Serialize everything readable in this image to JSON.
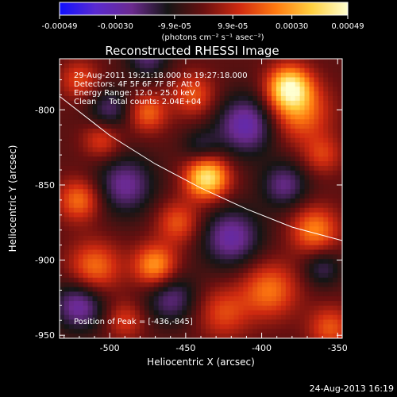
{
  "colorbar": {
    "tick_labels": [
      "-0.00049",
      "-0.00030",
      "-9.9e-05",
      "9.9e-05",
      "0.00030",
      "0.00049"
    ],
    "tick_values": [
      -0.00049,
      -0.0003,
      -9.9e-05,
      9.9e-05,
      0.0003,
      0.00049
    ],
    "range": [
      -0.00049,
      0.00049
    ],
    "unit_label": "(photons cm⁻² s⁻¹ asec⁻²)",
    "colors": [
      "#1010ff",
      "#5a2ad0",
      "#6b2a8f",
      "#151515",
      "#6a1010",
      "#d02a10",
      "#ff7a10",
      "#ffd040",
      "#ffffd0"
    ]
  },
  "image": {
    "title": "Reconstructed RHESSI Image",
    "info_lines": [
      "29-Aug-2011 19:21:18.000 to 19:27:18.000",
      "Detectors: 4F 5F 6F 7F 8F, Att 0",
      "Energy Range: 12.0 - 25.0 keV",
      "Clean     Total counts: 2.04E+04"
    ],
    "peak_label": "Position of Peak = [-436,-845]"
  },
  "chart_data": {
    "type": "heatmap",
    "title": "Reconstructed RHESSI Image",
    "xlabel": "Heliocentric X (arcsec)",
    "ylabel": "Heliocentric Y (arcsec)",
    "xlim": [
      -533,
      -347
    ],
    "ylim": [
      -952,
      -766
    ],
    "xticks": [
      -500,
      -450,
      -400,
      -350
    ],
    "yticks": [
      -800,
      -850,
      -900,
      -950
    ],
    "peak": {
      "x": -436,
      "y": -845
    },
    "limb_curve": {
      "x": [
        -533,
        -500,
        -470,
        -440,
        -410,
        -380,
        -347
      ],
      "y": [
        -791,
        -817,
        -836,
        -852,
        -866,
        -878,
        -887
      ]
    },
    "blobs": [
      {
        "x": -436,
        "y": -845,
        "amp": 1.0,
        "r": 10
      },
      {
        "x": -382,
        "y": -785,
        "amp": 0.95,
        "r": 10
      },
      {
        "x": -375,
        "y": -802,
        "amp": 0.55,
        "r": 14
      },
      {
        "x": -470,
        "y": -904,
        "amp": 0.7,
        "r": 10
      },
      {
        "x": -510,
        "y": -905,
        "amp": 0.55,
        "r": 12
      },
      {
        "x": -395,
        "y": -920,
        "amp": 0.55,
        "r": 13
      },
      {
        "x": -365,
        "y": -880,
        "amp": 0.6,
        "r": 11
      },
      {
        "x": -520,
        "y": -860,
        "amp": 0.55,
        "r": 10
      },
      {
        "x": -455,
        "y": -875,
        "amp": 0.45,
        "r": 10
      },
      {
        "x": -425,
        "y": -935,
        "amp": 0.4,
        "r": 12
      },
      {
        "x": -475,
        "y": -802,
        "amp": 0.5,
        "r": 9
      },
      {
        "x": -445,
        "y": -790,
        "amp": 0.45,
        "r": 10
      },
      {
        "x": -505,
        "y": -820,
        "amp": 0.4,
        "r": 9
      },
      {
        "x": -520,
        "y": -780,
        "amp": 0.4,
        "r": 9
      },
      {
        "x": -490,
        "y": -940,
        "amp": 0.35,
        "r": 9
      },
      {
        "x": -355,
        "y": -945,
        "amp": 0.45,
        "r": 10
      },
      {
        "x": -360,
        "y": -830,
        "amp": 0.35,
        "r": 9
      },
      {
        "x": -410,
        "y": -810,
        "amp": -0.6,
        "r": 14
      },
      {
        "x": -490,
        "y": -850,
        "amp": -0.5,
        "r": 14
      },
      {
        "x": -420,
        "y": -885,
        "amp": -0.55,
        "r": 14
      },
      {
        "x": -520,
        "y": -930,
        "amp": -0.55,
        "r": 12
      },
      {
        "x": -460,
        "y": -925,
        "amp": -0.45,
        "r": 12
      },
      {
        "x": -475,
        "y": -765,
        "amp": -0.4,
        "r": 10
      },
      {
        "x": -385,
        "y": -850,
        "amp": -0.45,
        "r": 11
      },
      {
        "x": -500,
        "y": -800,
        "amp": -0.4,
        "r": 10
      },
      {
        "x": -360,
        "y": -905,
        "amp": -0.35,
        "r": 9
      },
      {
        "x": -440,
        "y": -825,
        "amp": -0.3,
        "r": 9
      }
    ]
  },
  "timestamp": "24-Aug-2013 16:19"
}
